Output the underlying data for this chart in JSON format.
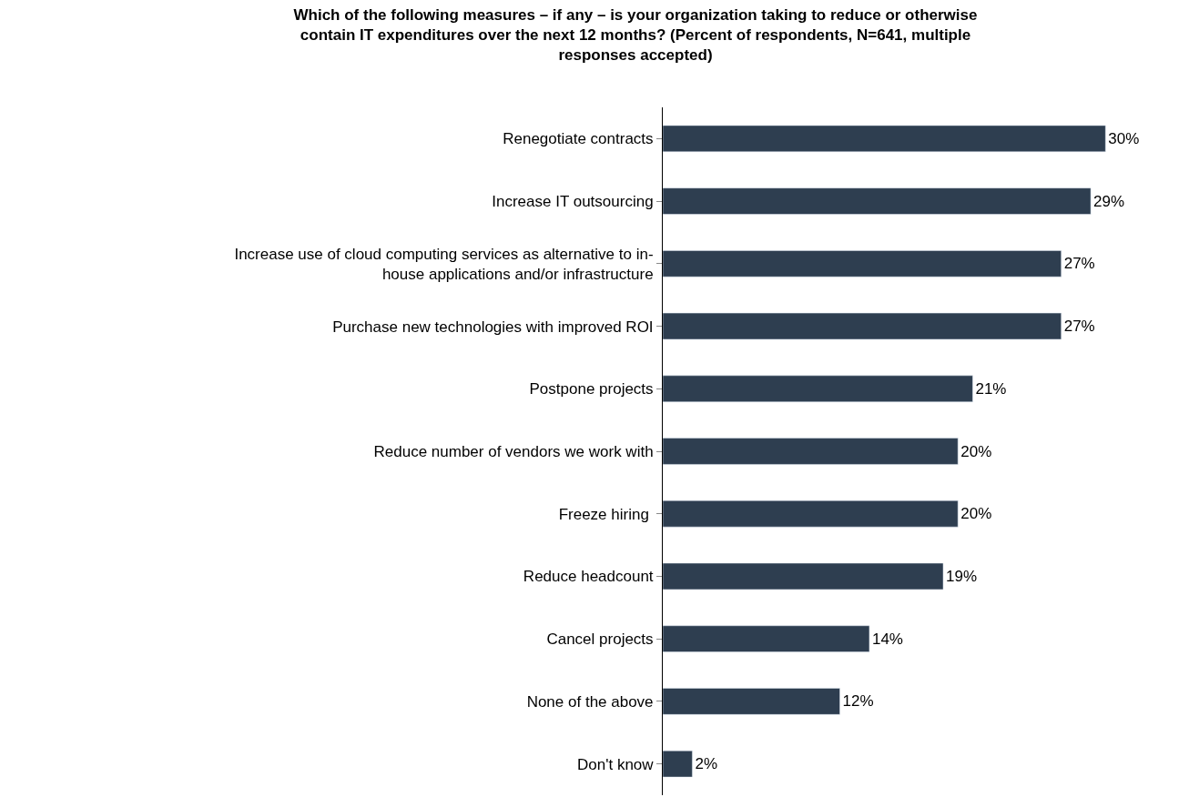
{
  "chart_data": {
    "type": "bar",
    "orientation": "horizontal",
    "title": "Which of the following measures – if any – is your organization taking to reduce or otherwise\ncontain IT expenditures over the next 12 months? (Percent of respondents, N=641, multiple\nresponses accepted)",
    "categories": [
      "Renegotiate contracts",
      "Increase IT outsourcing",
      "Increase use of cloud computing services as alternative to in-\nhouse applications and/or infrastructure",
      "Purchase new technologies with improved ROI",
      "Postpone projects",
      "Reduce number of vendors we work with",
      "Freeze hiring ",
      "Reduce headcount",
      "Cancel projects",
      "None of the above",
      "Don't know"
    ],
    "values": [
      30,
      29,
      27,
      27,
      21,
      20,
      20,
      19,
      14,
      12,
      2
    ],
    "value_labels": [
      "30%",
      "29%",
      "27%",
      "27%",
      "21%",
      "20%",
      "20%",
      "19%",
      "14%",
      "12%",
      "2%"
    ],
    "color": "#2e3e50",
    "tick_labels": "y"
  }
}
